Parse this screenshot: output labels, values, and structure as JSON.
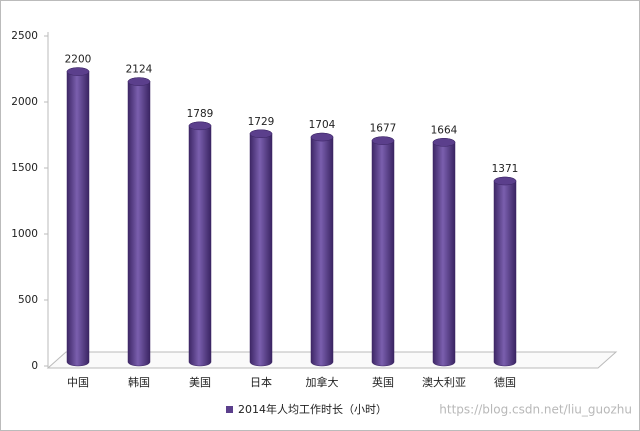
{
  "chart_data": {
    "type": "bar",
    "categories": [
      "中国",
      "韩国",
      "美国",
      "日本",
      "加拿大",
      "英国",
      "澳大利亚",
      "德国"
    ],
    "series": [
      {
        "name": "2014年人均工作时长（小时）",
        "color": "#5b3f8c",
        "values": [
          2200,
          2124,
          1789,
          1729,
          1704,
          1677,
          1664,
          1371
        ]
      }
    ],
    "ylim": [
      0,
      2500
    ],
    "yticks": [
      0,
      500,
      1000,
      1500,
      2000,
      2500
    ],
    "grid": false,
    "legend": "bottom",
    "watermark": "https://blog.csdn.net/liu_guozhu"
  }
}
